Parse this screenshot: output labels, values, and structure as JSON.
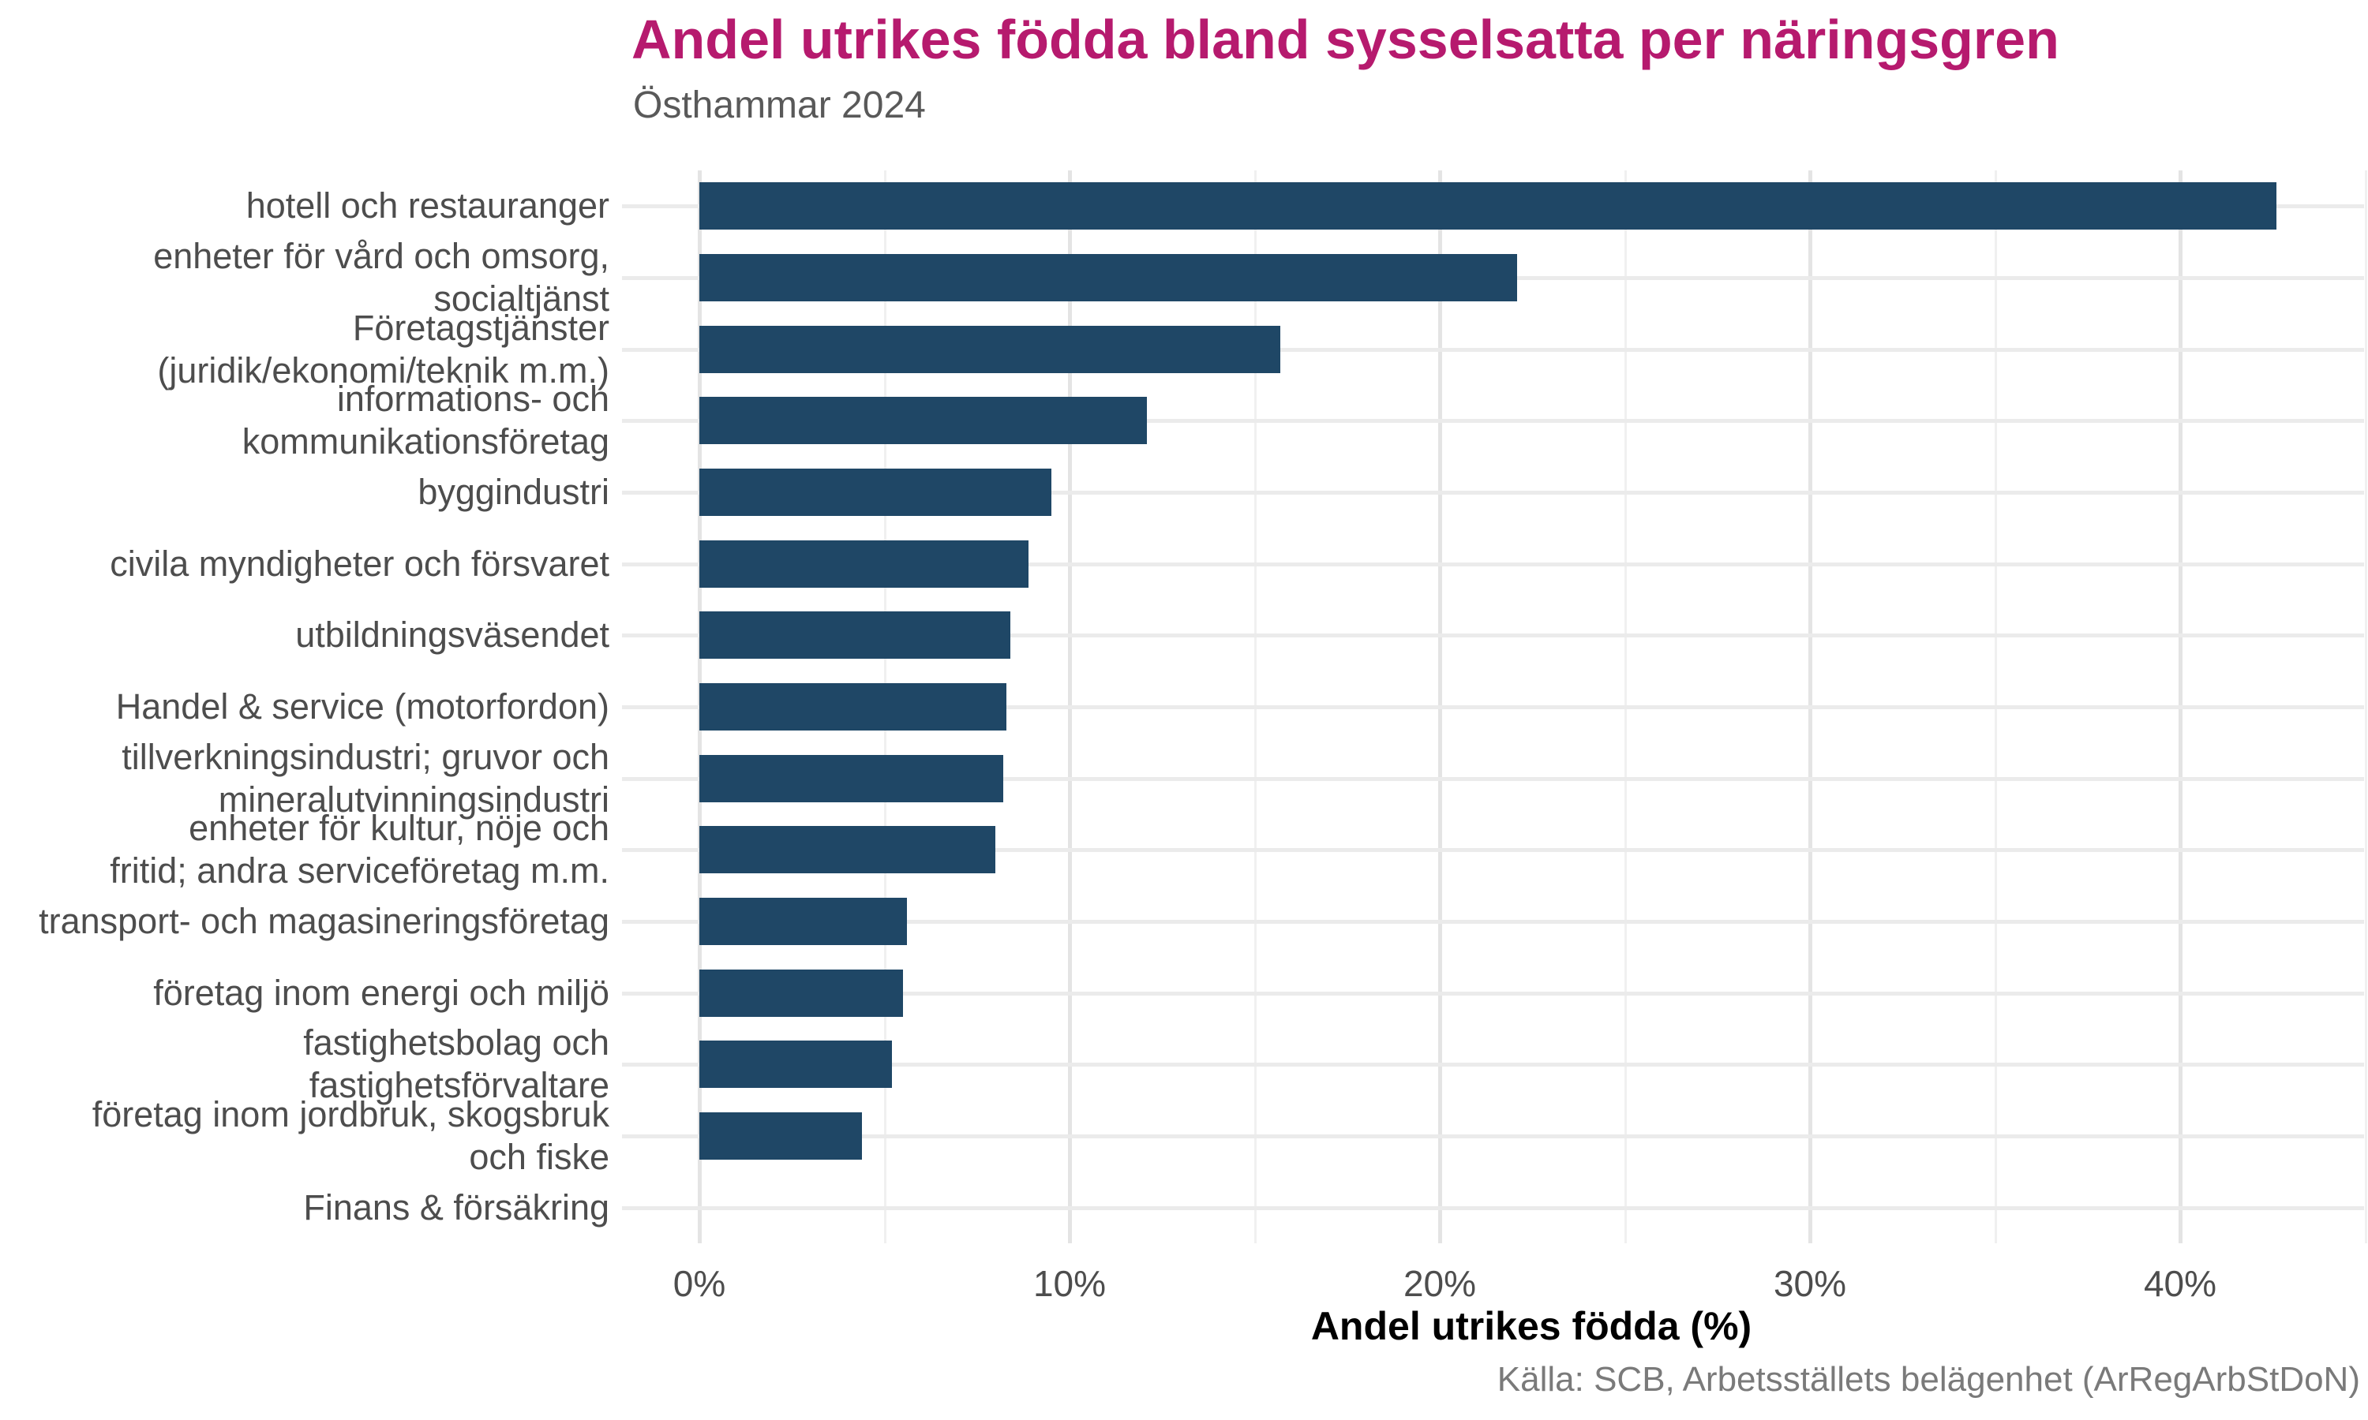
{
  "header": {
    "title": "Andel utrikes födda bland sysselsatta per näringsgren",
    "subtitle": "Östhammar 2024"
  },
  "footer": {
    "source": "Källa: SCB, Arbetsställets belägenhet (ArRegArbStDoN)"
  },
  "colors": {
    "background": "#ffffff",
    "bar": "#1f4766",
    "title": "#b61a6e",
    "subtitle": "#595959",
    "axis_text": "#4d4d4d",
    "axis_title": "#000000",
    "source_text": "#7a7a7a",
    "grid_major": "#e4e4e4",
    "grid_minor": "#f0f0f0",
    "grid_horizontal": "#ebebeb"
  },
  "chart_data": {
    "type": "bar",
    "orientation": "horizontal",
    "title": "Andel utrikes födda bland sysselsatta per näringsgren",
    "subtitle": "Östhammar 2024",
    "xlabel": "Andel utrikes födda (%)",
    "ylabel": "",
    "xlim": [
      0,
      45
    ],
    "grid": "major 10% and minor 5% vertical lines, horizontal line per category",
    "legend": "none",
    "x_tick_values": [
      0,
      10,
      20,
      30,
      40
    ],
    "x_tick_labels": [
      "0%",
      "10%",
      "20%",
      "30%",
      "40%"
    ],
    "categories": [
      "hotell och restauranger",
      "enheter för vård och omsorg,\nsocialtjänst",
      "Företagstjänster\n(juridik/ekonomi/teknik m.m.)",
      "informations- och\nkommunikationsföretag",
      "byggindustri",
      "civila myndigheter och försvaret",
      "utbildningsväsendet",
      "Handel & service (motorfordon)",
      "tillverkningsindustri; gruvor och\nmineralutvinningsindustri",
      "enheter för kultur, nöje och\nfritid; andra serviceföretag m.m.",
      "transport- och magasineringsföretag",
      "företag inom energi och miljö",
      "fastighetsbolag och\nfastighetsförvaltare",
      "företag inom jordbruk, skogsbruk\noch fiske",
      "Finans & försäkring"
    ],
    "values": [
      42.6,
      22.1,
      15.7,
      12.1,
      9.5,
      8.9,
      8.4,
      8.3,
      8.2,
      8.0,
      5.6,
      5.5,
      5.2,
      4.4,
      0
    ]
  }
}
